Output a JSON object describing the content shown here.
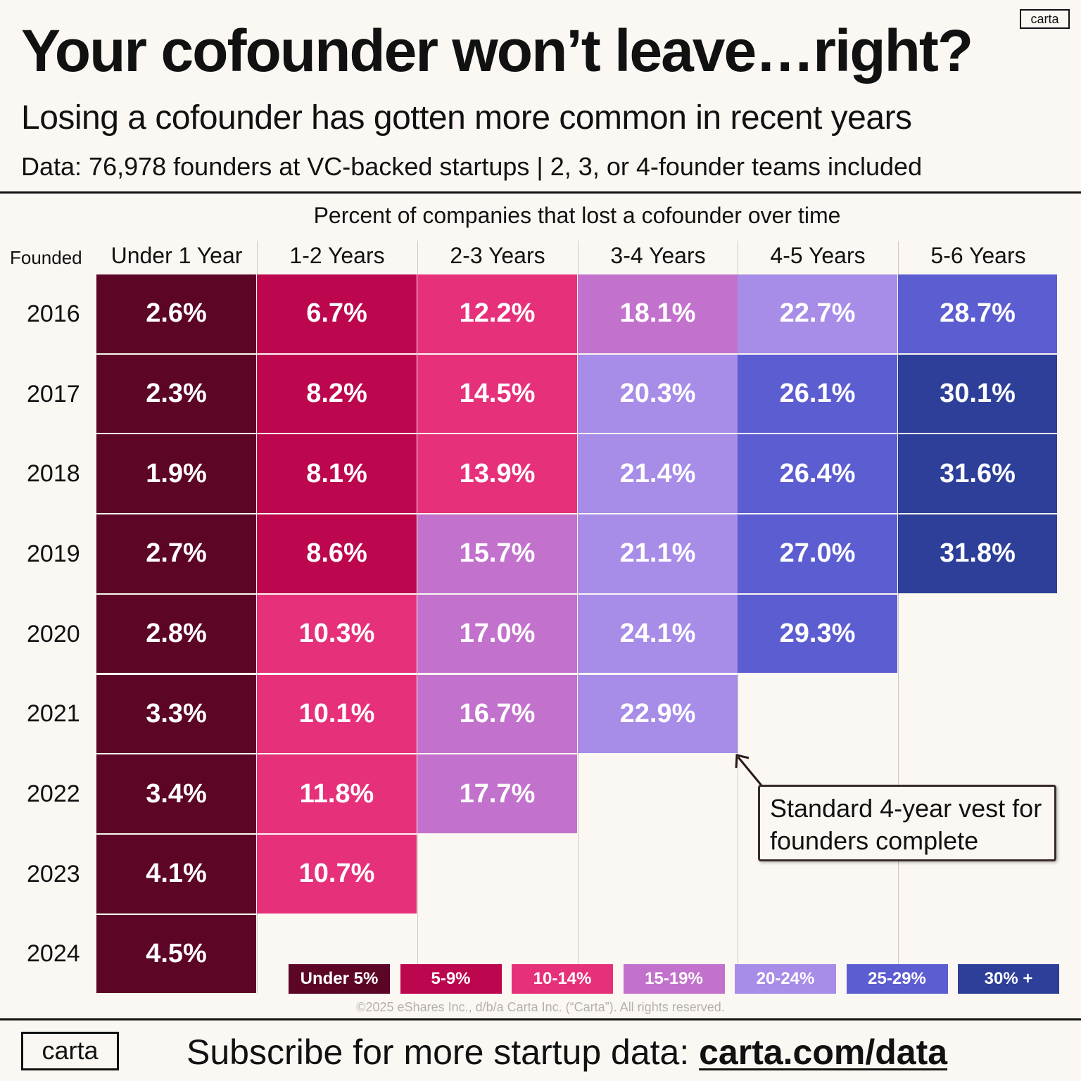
{
  "header": {
    "title": "Your cofounder won’t leave…right?",
    "subtitle": "Losing a cofounder has gotten more common in recent years",
    "data_note": "Data: 76,978 founders at VC-backed startups | 2, 3, or 4-founder teams included",
    "logo": "carta"
  },
  "chart_data": {
    "type": "heatmap",
    "title": "Percent of companies that lost a cofounder over time",
    "row_axis_label": "Founded",
    "columns": [
      "Under 1 Year",
      "1-2 Years",
      "2-3 Years",
      "3-4 Years",
      "4-5 Years",
      "5-6 Years"
    ],
    "rows": [
      "2016",
      "2017",
      "2018",
      "2019",
      "2020",
      "2021",
      "2022",
      "2023",
      "2024"
    ],
    "values": [
      [
        2.6,
        6.7,
        12.2,
        18.1,
        22.7,
        28.7
      ],
      [
        2.3,
        8.2,
        14.5,
        20.3,
        26.1,
        30.1
      ],
      [
        1.9,
        8.1,
        13.9,
        21.4,
        26.4,
        31.6
      ],
      [
        2.7,
        8.6,
        15.7,
        21.1,
        27.0,
        31.8
      ],
      [
        2.8,
        10.3,
        17.0,
        24.1,
        29.3
      ],
      [
        3.3,
        10.1,
        16.7,
        22.9
      ],
      [
        3.4,
        11.8,
        17.7
      ],
      [
        4.1,
        10.7
      ],
      [
        4.5
      ]
    ],
    "value_suffix": "%",
    "legend": [
      {
        "label": "Under 5%",
        "color": "#5c0526",
        "max": 5
      },
      {
        "label": "5-9%",
        "color": "#bc064d",
        "max": 10
      },
      {
        "label": "10-14%",
        "color": "#e6317a",
        "max": 15
      },
      {
        "label": "15-19%",
        "color": "#c272cc",
        "max": 20
      },
      {
        "label": "20-24%",
        "color": "#a78ce8",
        "max": 25
      },
      {
        "label": "25-29%",
        "color": "#5d5dd2",
        "max": 30
      },
      {
        "label": "30% +",
        "color": "#2d3f99",
        "max": 1000
      }
    ],
    "annotation": "Standard 4-year vest for founders complete"
  },
  "footer": {
    "copyright": "©2025 eShares Inc., d/b/a Carta Inc. (“Carta”). All rights reserved.",
    "logo": "carta",
    "cta_prefix": "Subscribe for more startup data: ",
    "cta_link": "carta.com/data"
  }
}
